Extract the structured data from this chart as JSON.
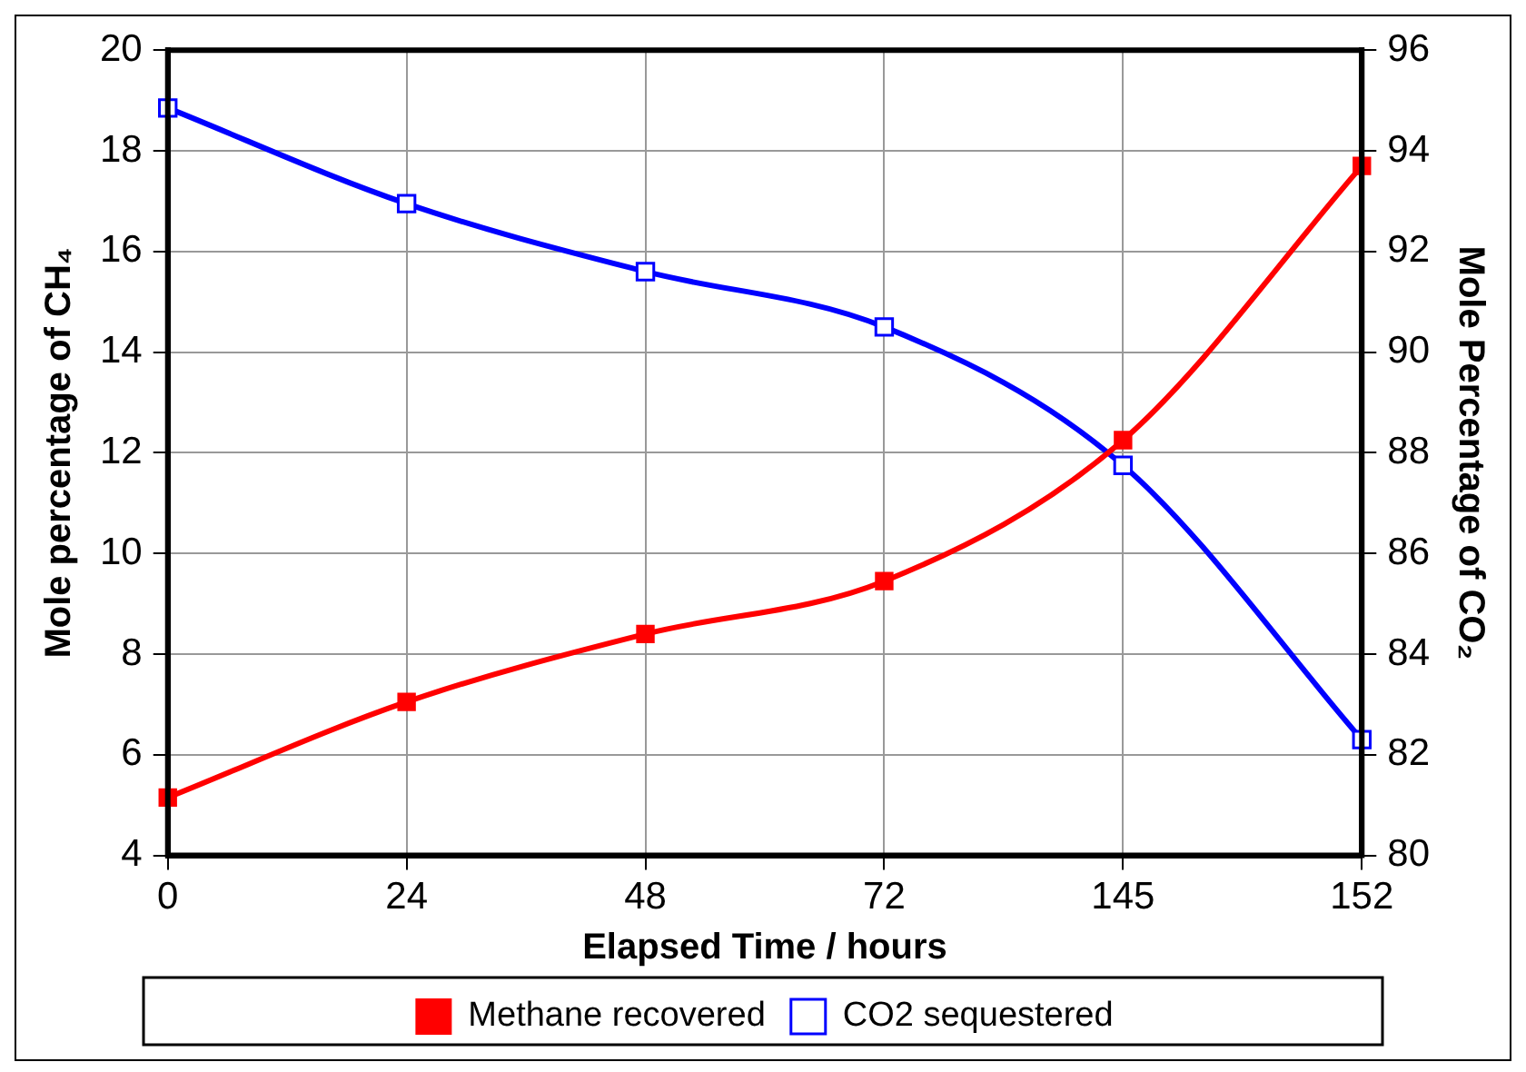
{
  "chart_data": {
    "type": "line",
    "xlabel": "Elapsed Time / hours",
    "ylabel": "Mole percentage of CH₄",
    "y2label": "Mole Percentage of CO₂",
    "categories": [
      "0",
      "24",
      "48",
      "72",
      "145",
      "152"
    ],
    "series": [
      {
        "name": "Methane recovered",
        "color": "#ff0000",
        "marker": "square",
        "values": [
          5.15,
          7.05,
          8.4,
          9.45,
          12.25,
          17.7
        ]
      },
      {
        "name": "CO2 sequestered",
        "color": "#0000ff",
        "marker": "square",
        "axis": "y2",
        "values": [
          94.85,
          92.95,
          91.6,
          90.5,
          87.75,
          82.3
        ]
      }
    ],
    "ylim": [
      4,
      20
    ],
    "yticks": [
      4,
      6,
      8,
      10,
      12,
      14,
      16,
      18,
      20
    ],
    "y2lim": [
      80,
      96
    ],
    "y2ticks": [
      80,
      82,
      84,
      86,
      88,
      90,
      92,
      94,
      96
    ],
    "grid": true,
    "legend": "bottom"
  }
}
